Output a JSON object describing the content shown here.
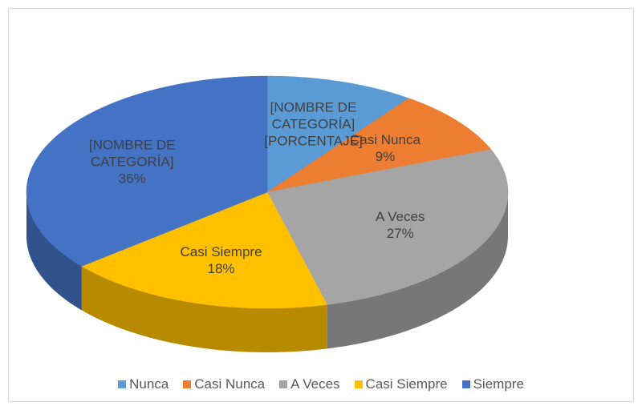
{
  "chart_data": {
    "type": "pie3d",
    "categories": [
      "Nunca",
      "Casi Nunca",
      "A Veces",
      "Casi Siempre",
      "Siempre"
    ],
    "values": [
      10,
      9,
      27,
      18,
      36
    ],
    "label_names": [
      "[NOMBRE DE CATEGORÍA]",
      "Casi Nunca",
      "A Veces",
      "Casi Siempre",
      "[NOMBRE DE CATEGORÍA]"
    ],
    "value_labels": [
      "[PORCENTAJE]",
      "9%",
      "27%",
      "18%",
      "36%"
    ],
    "colors": [
      "#5b9bd5",
      "#ed7d31",
      "#a5a5a5",
      "#ffc000",
      "#4472c4"
    ],
    "legend": "bottom"
  }
}
